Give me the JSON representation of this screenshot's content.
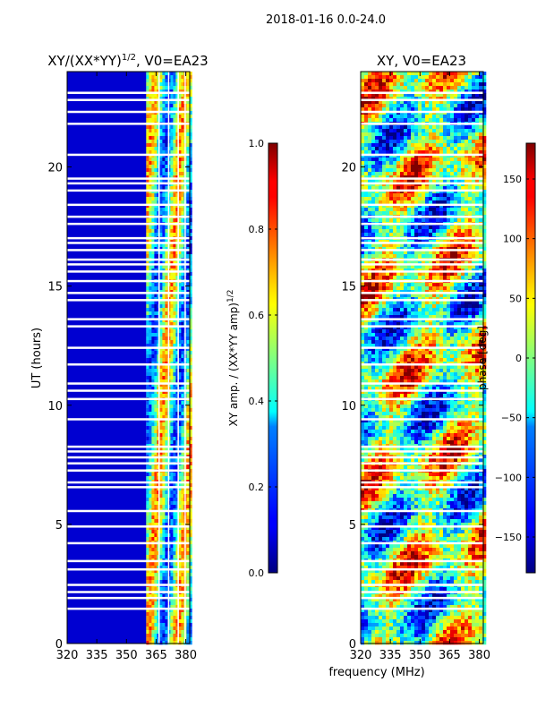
{
  "suptitle": "2018-01-16 0.0-24.0",
  "chart_data": [
    {
      "type": "heatmap",
      "title": "XY/(XX*YY)^1/2, V0=EA23",
      "title_main": "XY/(XX*YY)",
      "title_exp": "1/2",
      "title_tail": ", V0=EA23",
      "xlabel": "",
      "ylabel": "UT (hours)",
      "xlim": [
        320,
        382
      ],
      "ylim": [
        0,
        24
      ],
      "xticks": [
        320,
        335,
        350,
        365,
        380
      ],
      "yticks": [
        0,
        5,
        10,
        15,
        20
      ],
      "colorbar": {
        "label": "XY amp. / (XX*YY amp)^1/2",
        "label_main": "XY amp. / (XX*YY amp)",
        "label_exp": "1/2",
        "ticks": [
          "0.0",
          "0.2",
          "0.4",
          "0.6",
          "0.8",
          "1.0"
        ],
        "tick_values": [
          0.0,
          0.2,
          0.4,
          0.6,
          0.8,
          1.0
        ],
        "range": [
          0.0,
          1.0
        ],
        "colormap": "jet"
      },
      "background_value": 0.08,
      "high_band_mhz": [
        360,
        382
      ],
      "gap_hours": [
        1.45,
        1.9,
        2.15,
        2.45,
        3.1,
        3.45,
        4.2,
        4.9,
        5.55,
        6.55,
        6.75,
        7.25,
        7.55,
        7.8,
        8.05,
        8.25,
        9.4,
        10.25,
        10.6,
        10.9,
        11.7,
        12.4,
        13.3,
        13.6,
        14.4,
        14.7,
        15.2,
        15.6,
        15.9,
        16.1,
        16.5,
        16.8,
        17.0,
        17.6,
        17.9,
        18.4,
        19.0,
        19.3,
        19.5,
        20.5,
        21.8,
        22.3,
        22.8,
        23.1
      ]
    },
    {
      "type": "heatmap",
      "title": "XY, V0=EA23",
      "xlabel": "frequency (MHz)",
      "ylabel": "",
      "xlim": [
        320,
        382
      ],
      "ylim": [
        0,
        24
      ],
      "xticks": [
        320,
        335,
        350,
        365,
        380
      ],
      "yticks": [
        0,
        5,
        10,
        15,
        20
      ],
      "colorbar": {
        "label": "phase [deg]",
        "ticks": [
          "150",
          "100",
          "50",
          "0",
          "−50",
          "−100",
          "−150"
        ],
        "tick_values": [
          150,
          100,
          50,
          0,
          -50,
          -100,
          -150
        ],
        "range": [
          -180,
          180
        ],
        "colormap": "jet"
      },
      "gap_hours": [
        1.45,
        1.9,
        2.15,
        2.45,
        3.1,
        3.45,
        4.2,
        4.9,
        5.55,
        6.55,
        6.75,
        7.25,
        7.55,
        7.8,
        8.05,
        8.25,
        9.4,
        10.25,
        10.6,
        10.9,
        11.7,
        12.4,
        13.3,
        13.6,
        14.4,
        14.7,
        15.2,
        15.6,
        15.9,
        16.1,
        16.5,
        16.8,
        17.0,
        17.6,
        17.9,
        18.4,
        19.0,
        19.3,
        19.5,
        20.5,
        21.8,
        22.3,
        22.8,
        23.1
      ]
    }
  ]
}
